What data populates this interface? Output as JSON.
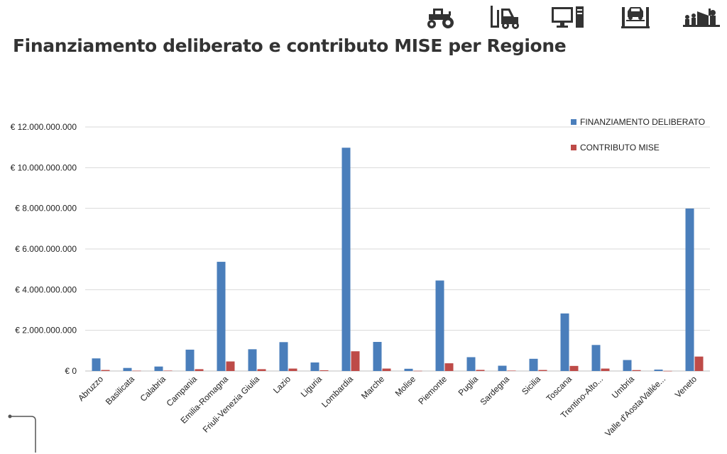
{
  "header": {
    "title": "Finanziamento deliberato e contributo MISE per Regione",
    "icons": [
      "tractor-icon",
      "forklift-icon",
      "computer-icon",
      "vehicle-lift-icon",
      "construction-workers-icon"
    ]
  },
  "colors": {
    "finanziamento": "#4a7ebb",
    "contributo": "#be4b48",
    "grid": "#d9d9d9",
    "title": "#333333"
  },
  "chart_data": {
    "type": "bar",
    "categories": [
      "Abruzzo",
      "Basilicata",
      "Calabria",
      "Campania",
      "Emilia-Romagna",
      "Friuli-Venezia Giulia",
      "Lazio",
      "Liguria",
      "Lombardia",
      "Marche",
      "Molise",
      "Piemonte",
      "Puglia",
      "Sardegna",
      "Sicilia",
      "Toscana",
      "Trentino-Alto...",
      "Umbria",
      "Valle d'Aosta/Vallée...",
      "Veneto"
    ],
    "series": [
      {
        "name": "FINANZIAMENTO DELIBERATO",
        "values": [
          620000000,
          150000000,
          220000000,
          1050000000,
          5370000000,
          1070000000,
          1420000000,
          420000000,
          10980000000,
          1430000000,
          110000000,
          4450000000,
          680000000,
          260000000,
          600000000,
          2830000000,
          1280000000,
          540000000,
          70000000,
          7990000000
        ]
      },
      {
        "name": "CONTRIBUTO MISE",
        "values": [
          50000000,
          15000000,
          20000000,
          90000000,
          470000000,
          90000000,
          120000000,
          35000000,
          970000000,
          120000000,
          10000000,
          380000000,
          55000000,
          20000000,
          50000000,
          250000000,
          120000000,
          45000000,
          5000000,
          710000000
        ]
      }
    ],
    "yticks": [
      "€ 0",
      "€ 2.000.000.000",
      "€ 4.000.000.000",
      "€ 6.000.000.000",
      "€ 8.000.000.000",
      "€ 10.000.000.000",
      "€ 12.000.000.000"
    ],
    "ylim": [
      0,
      12000000000
    ],
    "grid": true,
    "legend_position": "top-right"
  }
}
